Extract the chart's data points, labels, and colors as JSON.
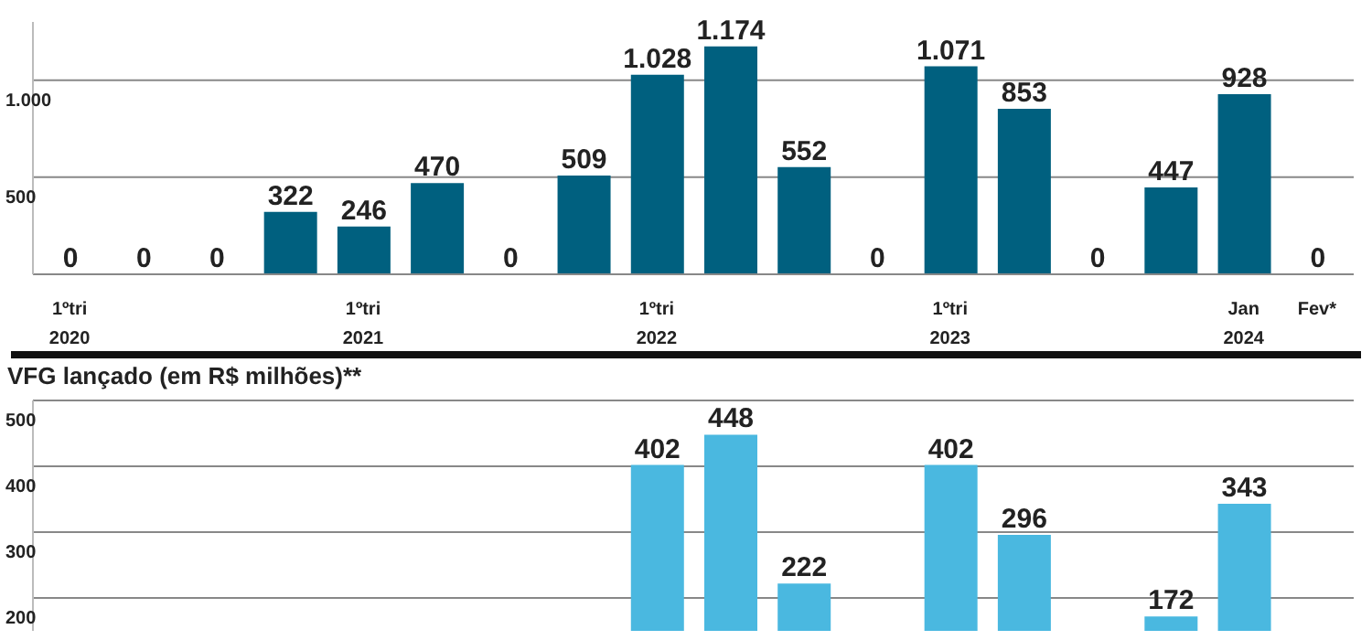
{
  "chart_data": [
    {
      "type": "bar",
      "categories": [
        "1ºtri\n2020",
        null,
        null,
        null,
        "1ºtri\n2021",
        null,
        null,
        null,
        "1ºtri\n2022",
        null,
        null,
        null,
        "1ºtri\n2023",
        null,
        null,
        null,
        "Jan\n2024",
        "Fev*"
      ],
      "values": [
        0,
        0,
        0,
        322,
        246,
        470,
        0,
        509,
        1028,
        1174,
        552,
        0,
        1071,
        853,
        0,
        447,
        928,
        0
      ],
      "value_labels": [
        "0",
        "0",
        "0",
        "322",
        "246",
        "470",
        "0",
        "509",
        "1.028",
        "1.174",
        "552",
        "0",
        "1.071",
        "853",
        "0",
        "447",
        "928",
        "0"
      ],
      "color": "#00607f",
      "ylim": [
        0,
        1300
      ],
      "yticks": [
        {
          "value": 500,
          "label": "500"
        },
        {
          "value": 1000,
          "label": "1.000"
        }
      ],
      "grid": "y"
    },
    {
      "type": "bar",
      "title": "VFG lançado (em R$ milhões)**",
      "categories": [
        null,
        null,
        null,
        null,
        null,
        null,
        null,
        null,
        null,
        null,
        null,
        null,
        null,
        null,
        null,
        null,
        null,
        null
      ],
      "values": [
        null,
        null,
        null,
        null,
        null,
        null,
        null,
        null,
        402,
        448,
        222,
        null,
        402,
        296,
        null,
        172,
        343,
        null
      ],
      "value_labels": [
        null,
        null,
        null,
        null,
        null,
        null,
        null,
        null,
        "402",
        "448",
        "222",
        null,
        "402",
        "296",
        null,
        "172",
        "343",
        null
      ],
      "color": "#4ab8e0",
      "ylim": [
        150,
        500
      ],
      "yticks": [
        200,
        300,
        400,
        500
      ],
      "grid": "y",
      "tick_labels": "y"
    }
  ]
}
